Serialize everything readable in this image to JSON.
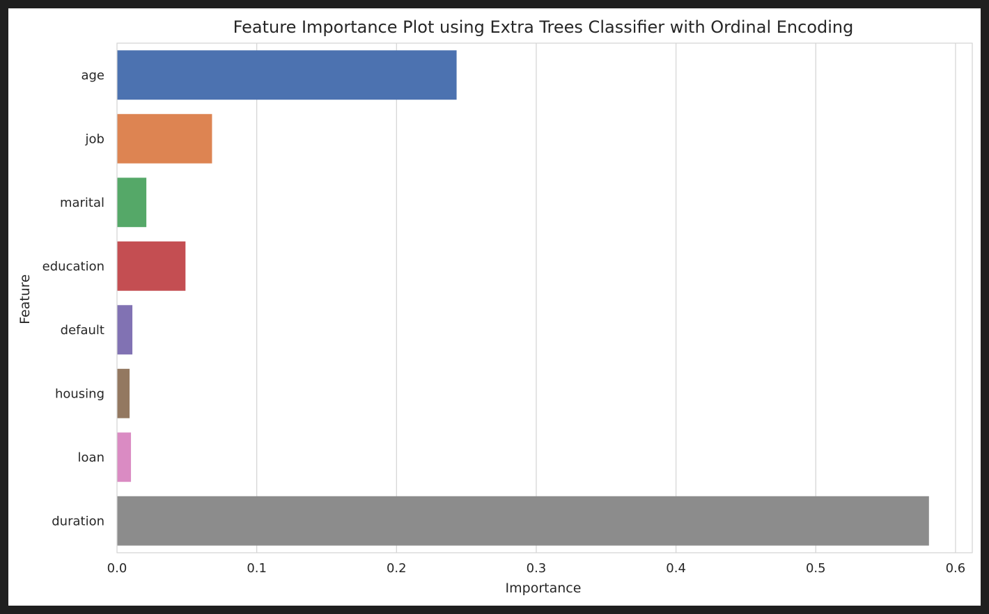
{
  "chart_data": {
    "type": "bar",
    "orientation": "horizontal",
    "title": "Feature Importance Plot using Extra Trees Classifier with Ordinal Encoding",
    "xlabel": "Importance",
    "ylabel": "Feature",
    "xlim": [
      0.0,
      0.612
    ],
    "xticks": [
      "0.0",
      "0.1",
      "0.2",
      "0.3",
      "0.4",
      "0.5",
      "0.6"
    ],
    "grid": true,
    "categories": [
      "age",
      "job",
      "marital",
      "education",
      "default",
      "housing",
      "loan",
      "duration"
    ],
    "values": [
      0.243,
      0.068,
      0.021,
      0.049,
      0.011,
      0.009,
      0.01,
      0.581
    ],
    "colors": [
      "#4c72b0",
      "#dd8452",
      "#55a868",
      "#c44e52",
      "#8172b3",
      "#937860",
      "#da8bc3",
      "#8c8c8c"
    ]
  }
}
